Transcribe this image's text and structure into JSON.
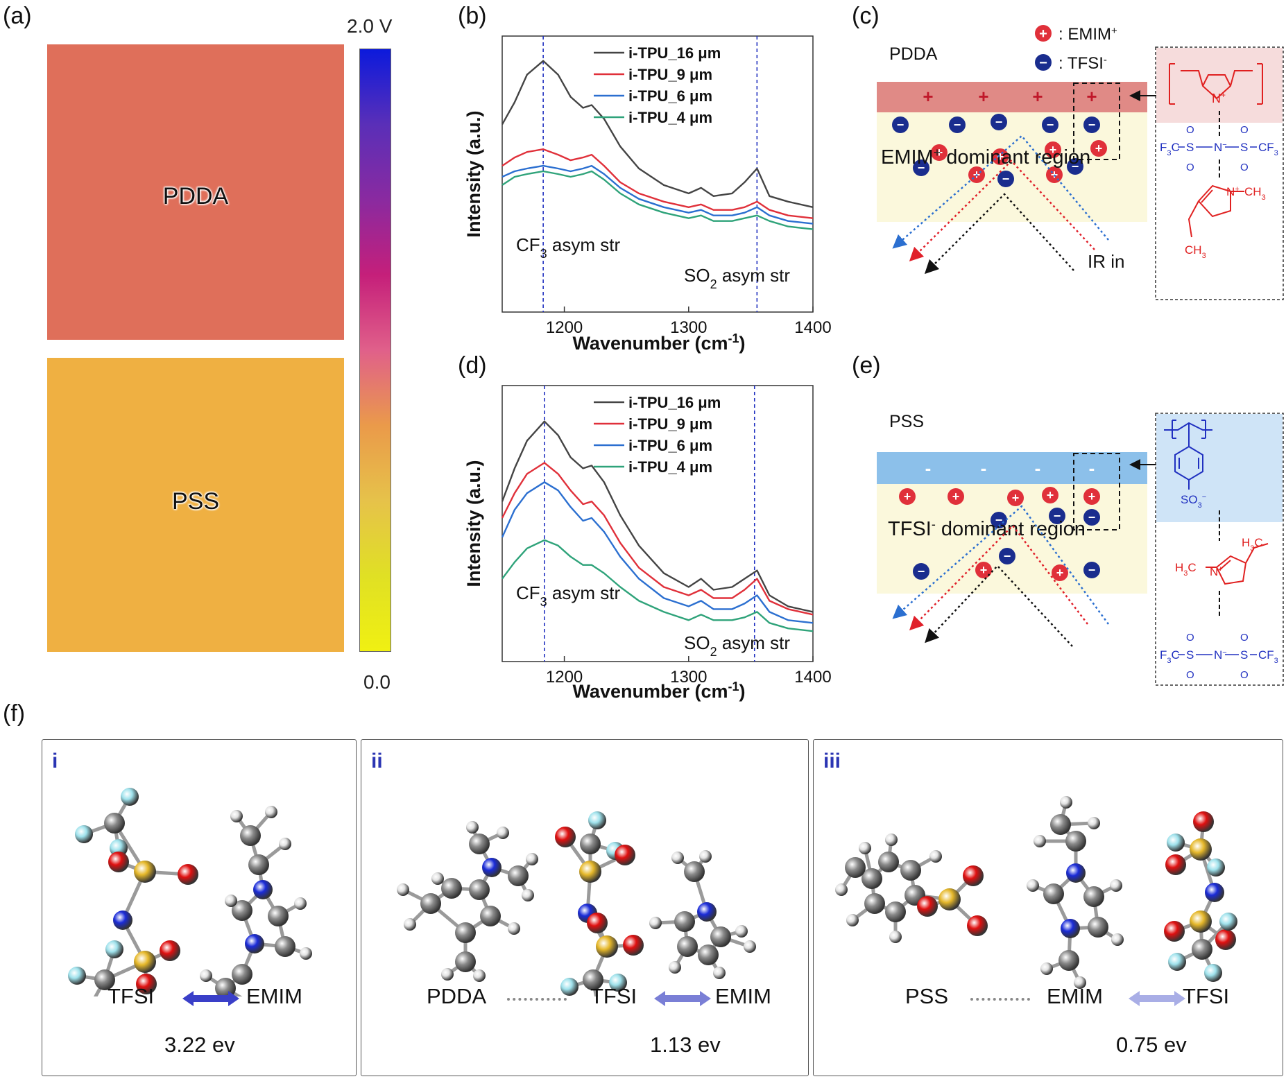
{
  "panel_labels": {
    "a": "(a)",
    "b": "(b)",
    "c": "(c)",
    "d": "(d)",
    "e": "(e)",
    "f": "(f)"
  },
  "panel_a": {
    "map_labels": [
      "PDDA",
      "PSS"
    ],
    "map_colors": [
      "#df6f5a",
      "#efb042"
    ],
    "colorbar": {
      "max_label": "2.0 V",
      "min_label": "0.0",
      "stops": [
        "#0c1adc",
        "#5a2fb8",
        "#8a2aa0",
        "#c51f7a",
        "#e0608a",
        "#ea9a4a",
        "#e6c24a",
        "#e0e024",
        "#f0f012"
      ]
    }
  },
  "chart_data": [
    {
      "type": "line",
      "panel": "b",
      "xlabel": "Wavenumber (cm",
      "xlabel_sup": "-1",
      "xlabel_end": ")",
      "ylabel": "Intensity (a.u.)",
      "xlim": [
        1150,
        1400
      ],
      "xticks": [
        1200,
        1300,
        1400
      ],
      "ylim": [
        0,
        1
      ],
      "reference_lines_x": [
        1183,
        1355
      ],
      "annotations": [
        {
          "text": "CF",
          "sub": "3",
          "rest": " asym str"
        },
        {
          "text": "SO",
          "sub": "2",
          "rest": " asym str"
        }
      ],
      "legend": [
        "i-TPU_16 μm",
        "i-TPU_9 μm",
        "i-TPU_6 μm",
        "i-TPU_4 μm"
      ],
      "series": [
        {
          "name": "i-TPU_16 μm",
          "color": "#444444",
          "x": [
            1150,
            1160,
            1170,
            1183,
            1195,
            1205,
            1215,
            1222,
            1232,
            1245,
            1260,
            1280,
            1300,
            1310,
            1320,
            1335,
            1345,
            1355,
            1365,
            1380,
            1400
          ],
          "y": [
            0.68,
            0.76,
            0.86,
            0.91,
            0.86,
            0.78,
            0.74,
            0.75,
            0.7,
            0.6,
            0.52,
            0.46,
            0.43,
            0.45,
            0.42,
            0.43,
            0.47,
            0.52,
            0.42,
            0.4,
            0.38
          ]
        },
        {
          "name": "i-TPU_9 μm",
          "color": "#e0303a",
          "x": [
            1150,
            1160,
            1170,
            1183,
            1195,
            1205,
            1215,
            1222,
            1232,
            1245,
            1260,
            1280,
            1300,
            1310,
            1320,
            1335,
            1345,
            1355,
            1365,
            1380,
            1400
          ],
          "y": [
            0.53,
            0.56,
            0.58,
            0.59,
            0.57,
            0.55,
            0.56,
            0.57,
            0.53,
            0.47,
            0.43,
            0.4,
            0.38,
            0.39,
            0.37,
            0.37,
            0.38,
            0.4,
            0.37,
            0.35,
            0.34
          ]
        },
        {
          "name": "i-TPU_6 μm",
          "color": "#2b6fd0",
          "x": [
            1150,
            1160,
            1170,
            1183,
            1195,
            1205,
            1215,
            1222,
            1232,
            1245,
            1260,
            1280,
            1300,
            1310,
            1320,
            1335,
            1345,
            1355,
            1365,
            1380,
            1400
          ],
          "y": [
            0.49,
            0.51,
            0.52,
            0.53,
            0.52,
            0.51,
            0.52,
            0.53,
            0.5,
            0.45,
            0.41,
            0.38,
            0.36,
            0.37,
            0.35,
            0.35,
            0.36,
            0.38,
            0.35,
            0.33,
            0.32
          ]
        },
        {
          "name": "i-TPU_4 μm",
          "color": "#2fa37a",
          "x": [
            1150,
            1160,
            1170,
            1183,
            1195,
            1205,
            1215,
            1222,
            1232,
            1245,
            1260,
            1280,
            1300,
            1310,
            1320,
            1335,
            1345,
            1355,
            1365,
            1380,
            1400
          ],
          "y": [
            0.46,
            0.49,
            0.5,
            0.51,
            0.5,
            0.49,
            0.5,
            0.51,
            0.48,
            0.43,
            0.39,
            0.36,
            0.34,
            0.35,
            0.33,
            0.33,
            0.34,
            0.35,
            0.33,
            0.31,
            0.3
          ]
        }
      ]
    },
    {
      "type": "line",
      "panel": "d",
      "xlabel": "Wavenumber (cm",
      "xlabel_sup": "-1",
      "xlabel_end": ")",
      "ylabel": "Intensity (a.u.)",
      "xlim": [
        1150,
        1400
      ],
      "xticks": [
        1200,
        1300,
        1400
      ],
      "ylim": [
        0,
        1
      ],
      "reference_lines_x": [
        1184,
        1353
      ],
      "annotations": [
        {
          "text": "CF",
          "sub": "3",
          "rest": " asym str"
        },
        {
          "text": "SO",
          "sub": "2",
          "rest": " asym str"
        }
      ],
      "legend": [
        "i-TPU_16 μm",
        "i-TPU_9 μm",
        "i-TPU_6 μm",
        "i-TPU_4 μm"
      ],
      "series": [
        {
          "name": "i-TPU_16 μm",
          "color": "#444444",
          "x": [
            1150,
            1160,
            1170,
            1184,
            1195,
            1205,
            1215,
            1222,
            1232,
            1245,
            1260,
            1280,
            1300,
            1310,
            1320,
            1335,
            1345,
            1355,
            1365,
            1380,
            1400
          ],
          "y": [
            0.58,
            0.7,
            0.8,
            0.87,
            0.82,
            0.74,
            0.7,
            0.71,
            0.65,
            0.53,
            0.42,
            0.32,
            0.27,
            0.3,
            0.26,
            0.27,
            0.3,
            0.33,
            0.24,
            0.2,
            0.18
          ]
        },
        {
          "name": "i-TPU_9 μm",
          "color": "#e0303a",
          "x": [
            1150,
            1160,
            1170,
            1184,
            1195,
            1205,
            1215,
            1222,
            1232,
            1245,
            1260,
            1280,
            1300,
            1310,
            1320,
            1335,
            1345,
            1355,
            1365,
            1380,
            1400
          ],
          "y": [
            0.52,
            0.61,
            0.68,
            0.72,
            0.68,
            0.62,
            0.57,
            0.58,
            0.53,
            0.43,
            0.34,
            0.27,
            0.24,
            0.26,
            0.23,
            0.23,
            0.26,
            0.3,
            0.22,
            0.19,
            0.17
          ]
        },
        {
          "name": "i-TPU_6 μm",
          "color": "#2b6fd0",
          "x": [
            1150,
            1160,
            1170,
            1184,
            1195,
            1205,
            1215,
            1222,
            1232,
            1245,
            1260,
            1280,
            1300,
            1310,
            1320,
            1335,
            1345,
            1355,
            1365,
            1380,
            1400
          ],
          "y": [
            0.45,
            0.55,
            0.61,
            0.65,
            0.62,
            0.56,
            0.51,
            0.52,
            0.47,
            0.38,
            0.3,
            0.23,
            0.2,
            0.22,
            0.19,
            0.19,
            0.21,
            0.24,
            0.18,
            0.15,
            0.14
          ]
        },
        {
          "name": "i-TPU_4 μm",
          "color": "#2fa37a",
          "x": [
            1150,
            1160,
            1170,
            1184,
            1195,
            1205,
            1215,
            1222,
            1232,
            1245,
            1260,
            1280,
            1300,
            1310,
            1320,
            1335,
            1345,
            1355,
            1365,
            1380,
            1400
          ],
          "y": [
            0.3,
            0.36,
            0.41,
            0.44,
            0.42,
            0.38,
            0.35,
            0.35,
            0.32,
            0.27,
            0.22,
            0.18,
            0.15,
            0.17,
            0.15,
            0.15,
            0.16,
            0.18,
            0.14,
            0.12,
            0.11
          ]
        }
      ]
    }
  ],
  "panel_c": {
    "title": "PDDA",
    "legend_cation": ": EMIM",
    "legend_cation_sup": "+",
    "legend_anion": ": TFSI",
    "legend_anion_sup": "-",
    "region_text": "EMIM",
    "region_sup": "+",
    "region_rest": " dominant region",
    "ir_label": "IR in",
    "layer_color": "#e08a86",
    "ion_plus": "+",
    "ion_minus": "−",
    "chem": {
      "n_plus": "N",
      "plus": "+",
      "tfsi_left": "F",
      "tfsi_sub3": "3",
      "tfsi_c": "C",
      "tfsi_s": "S",
      "tfsi_o": "O",
      "tfsi_n": "N",
      "tfsi_minus": "−",
      "tfsi_cf": "CF",
      "ch3": "CH",
      "ch3_sub": "3"
    }
  },
  "panel_e": {
    "title": "PSS",
    "region_text": "TFSI",
    "region_sup": "-",
    "region_rest": " dominant region",
    "layer_color": "#8cc0ea",
    "ion_plus": "+",
    "ion_minus": "−",
    "layer_minus": "-",
    "chem": {
      "so3": "SO",
      "so3_sub": "3",
      "so3_sup": "−",
      "h3c": "H",
      "h3c_sub": "3",
      "h3c_c": "C",
      "n_plus": "N",
      "plus": "+",
      "tfsi_left": "F",
      "tfsi_sub3": "3",
      "tfsi_c": "C",
      "tfsi_s": "S",
      "tfsi_o": "O",
      "tfsi_n": "N",
      "tfsi_minus": "−",
      "tfsi_cf": "CF"
    }
  },
  "panel_f": {
    "boxes": [
      {
        "roman": "i",
        "caption_left": "TFSI",
        "caption_right": "EMIM",
        "energy": "3.22 ev",
        "arrow_color": "#3a3fc8"
      },
      {
        "roman": "ii",
        "caption_left": "PDDA",
        "caption_mid": "TFSI",
        "caption_right": "EMIM",
        "energy": "1.13 ev",
        "arrow_color": "#7a7fd6"
      },
      {
        "roman": "iii",
        "caption_left": "PSS",
        "caption_mid": "EMIM",
        "caption_right": "TFSI",
        "energy": "0.75 ev",
        "arrow_color": "#a9aee6"
      }
    ]
  }
}
